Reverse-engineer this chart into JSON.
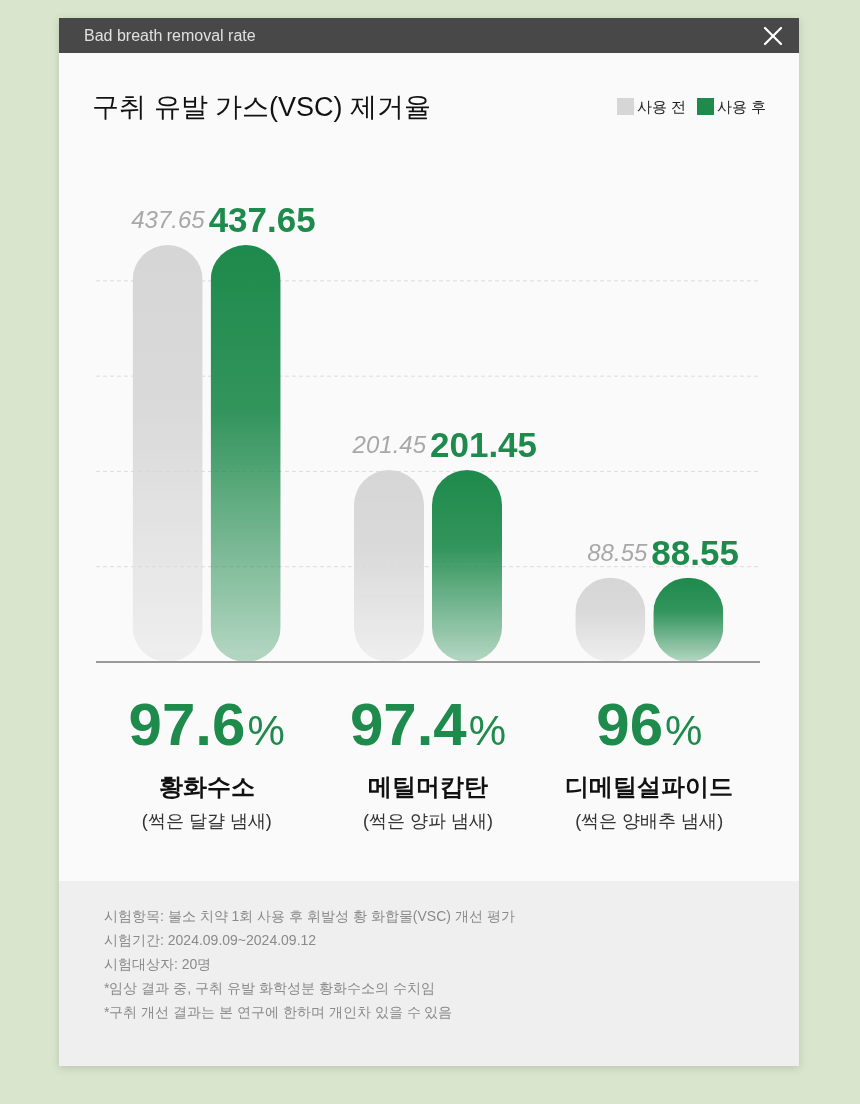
{
  "chart_data": {
    "type": "bar",
    "title": "구취 유발 가스(VSC) 제거율",
    "subtitle": "Bad breath removal rate",
    "categories": [
      "황화수소\n(썩은 달걀 냄새)",
      "메틸머캅탄\n(썩은 양파 냄새)",
      "디메틸설파이드\n(썩은 양배추 냄새)"
    ],
    "series": [
      {
        "name": "사용 전",
        "color": "#d6d6d6",
        "values": [
          437.65,
          201.45,
          88.55
        ]
      },
      {
        "name": "사용 후",
        "color": "#1e8a4c",
        "values": [
          437.65,
          201.45,
          88.55
        ]
      }
    ],
    "yticks": [
      {
        "value": 100,
        "label": null
      },
      {
        "value": 200,
        "label": null
      },
      {
        "value": 300,
        "label": null
      },
      {
        "value": 400,
        "label": null
      }
    ],
    "grid": "y",
    "legend": "top right",
    "data_labels": true,
    "tick_labels": "x",
    "annotations": [
      "97.6%",
      "97.4%",
      "96%",
      "시험항목: 불소 치약 1회 사용 후 휘발성 황 화합물(VSC) 개선 평가",
      "시험기간: 2024.09.09~2024.09.12",
      "시험대상자: 20명",
      "*임상 결과 중, 구취 유발 화학성분 황화수소의 수치임",
      "*구취 개선 결과는 본 연구에 한하며 개인차 있을 수 있음"
    ]
  }
}
